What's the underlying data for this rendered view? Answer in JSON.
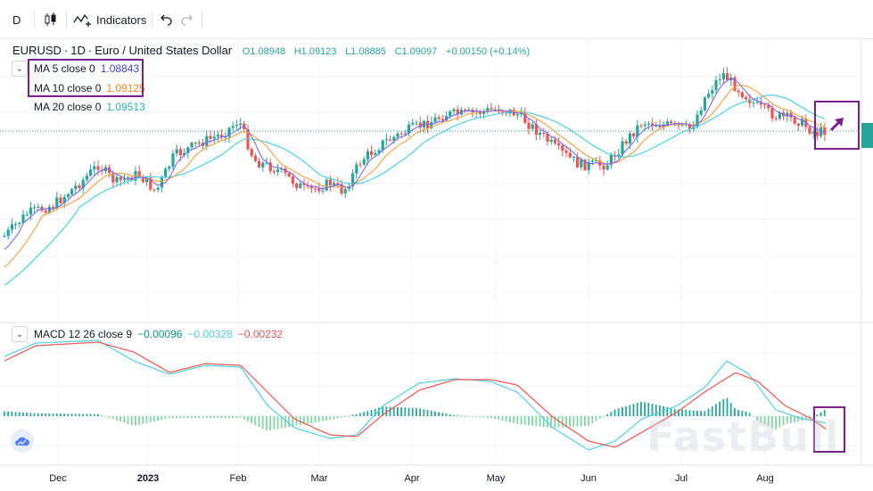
{
  "toolbar": {
    "interval": "D",
    "indicators_label": "Indicators"
  },
  "symbol": {
    "name": "EURUSD",
    "interval": "1D",
    "description": "Euro / United States Dollar",
    "open": "O1.08948",
    "high": "H1.09123",
    "low": "L1.08885",
    "close": "C1.09097",
    "change": "+0.00150 (+0.14%)"
  },
  "ma": [
    {
      "label": "MA 5 close 0",
      "value": "1.08843",
      "color": "#3f3fd8"
    },
    {
      "label": "MA 10 close 0",
      "value": "1.09125",
      "color": "#f5841f"
    },
    {
      "label": "MA 20 close 0",
      "value": "1.09513",
      "color": "#26b0b6"
    }
  ],
  "macd": {
    "label": "MACD 12 26 close 9",
    "hist_value": "−0.00096",
    "macd_value": "−0.00328",
    "signal_value": "−0.00232",
    "hist_color": "#26a69a",
    "macd_color": "#4dd0e1",
    "signal_color": "#ef5350"
  },
  "watermark": "FastBull",
  "colors": {
    "up": "#26a69a",
    "down": "#ef5350",
    "highlight_box": "#7b1f8c",
    "price_line": "#26a69a"
  },
  "chart_data": [
    {
      "type": "candlestick",
      "x_ticks": [
        "Dec",
        "2023",
        "Feb",
        "Mar",
        "Apr",
        "May",
        "Jun",
        "Jul",
        "Aug"
      ],
      "series": [
        {
          "name": "MA 5 close 0"
        },
        {
          "name": "MA 10 close 0"
        },
        {
          "name": "MA 20 close 0"
        }
      ],
      "last_close": 1.09097
    },
    {
      "type": "bar",
      "series": [
        {
          "name": "MACD 12 26 close 9"
        }
      ]
    }
  ]
}
